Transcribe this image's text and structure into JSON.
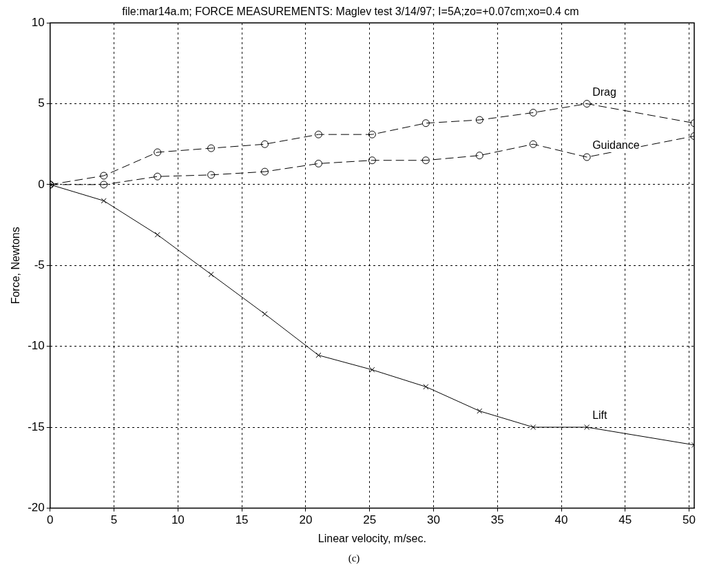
{
  "chart_data": {
    "type": "line",
    "title": "file:mar14a.m; FORCE MEASUREMENTS: Maglev test 3/14/97; I=5A;zo=+0.07cm;xo=0.4 cm",
    "xlabel": "Linear velocity, m/sec.",
    "ylabel": "Force, Newtons",
    "x": [
      0,
      4.2,
      8.4,
      12.6,
      16.8,
      21,
      25.2,
      29.4,
      33.6,
      37.8,
      42,
      50.4
    ],
    "series": [
      {
        "name": "Drag",
        "color": "#000000",
        "marker": "circle",
        "line_style": "dashed",
        "values": [
          0,
          0.55,
          2.0,
          2.25,
          2.5,
          3.1,
          3.1,
          3.8,
          4.0,
          4.45,
          5.0,
          3.8
        ]
      },
      {
        "name": "Guidance",
        "color": "#000000",
        "marker": "circle",
        "line_style": "dashed",
        "values": [
          0,
          0.0,
          0.5,
          0.6,
          0.8,
          1.3,
          1.5,
          1.5,
          1.8,
          2.5,
          1.7,
          3.0
        ]
      },
      {
        "name": "Lift",
        "color": "#000000",
        "marker": "cross",
        "line_style": "solid",
        "values": [
          0,
          -1.0,
          -3.1,
          -5.55,
          -8.0,
          -10.55,
          -11.45,
          -12.5,
          -14.0,
          -15.0,
          -15.0,
          -16.1
        ]
      }
    ],
    "xlim": [
      0,
      50.4
    ],
    "xticks": [
      0,
      5,
      10,
      15,
      20,
      25,
      30,
      35,
      40,
      45,
      50
    ],
    "ylim": [
      -20,
      10
    ],
    "yticks": [
      -20,
      -15,
      -10,
      -5,
      0,
      5,
      10
    ],
    "grid": true,
    "legend": false,
    "annotations": [
      "(c)"
    ]
  }
}
